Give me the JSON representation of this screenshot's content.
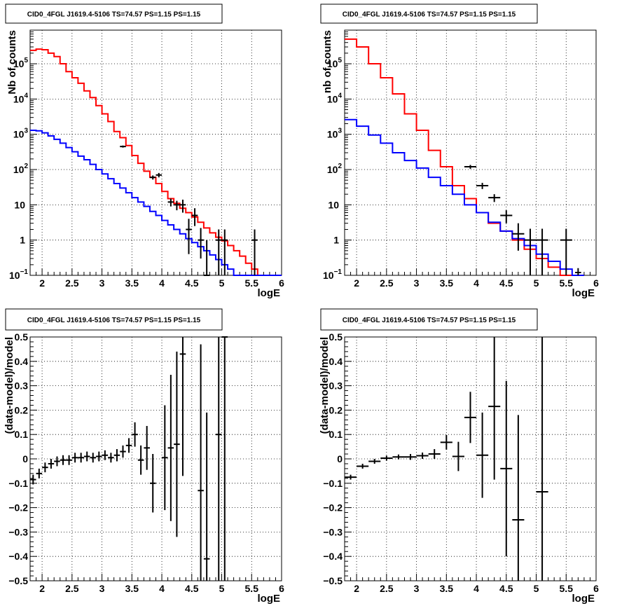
{
  "chart_data": [
    {
      "type": "line",
      "title": "CID0_4FGL J1619.4-5106 TS=74.57 PS=1.15 PS=1.15",
      "xlabel": "logE",
      "ylabel": "Nb of counts",
      "xlim": [
        1.8,
        6.0
      ],
      "ylim": [
        0.1,
        900000
      ],
      "yscale": "log",
      "grid": true,
      "xticks": [
        {
          "v": 2,
          "label": "2"
        },
        {
          "v": 2.5,
          "label": "2.5"
        },
        {
          "v": 3,
          "label": "3"
        },
        {
          "v": 3.5,
          "label": "3.5"
        },
        {
          "v": 4,
          "label": "4"
        },
        {
          "v": 4.5,
          "label": "4.5"
        },
        {
          "v": 5,
          "label": "5"
        },
        {
          "v": 5.5,
          "label": "5.5"
        },
        {
          "v": 6,
          "label": "6"
        }
      ],
      "yticks": [
        {
          "v": 0.1,
          "label": "10",
          "sup": "−1"
        },
        {
          "v": 1,
          "label": "1"
        },
        {
          "v": 10,
          "label": "10"
        },
        {
          "v": 100,
          "label": "10",
          "sup": "2"
        },
        {
          "v": 1000,
          "label": "10",
          "sup": "3"
        },
        {
          "v": 10000,
          "label": "10",
          "sup": "4"
        },
        {
          "v": 100000,
          "label": "10",
          "sup": "5"
        }
      ],
      "bins": [
        1.8,
        1.9,
        2.0,
        2.1,
        2.2,
        2.3,
        2.4,
        2.5,
        2.6,
        2.7,
        2.8,
        2.9,
        3.0,
        3.1,
        3.2,
        3.3,
        3.4,
        3.5,
        3.6,
        3.7,
        3.8,
        3.9,
        4.0,
        4.1,
        4.2,
        4.3,
        4.4,
        4.5,
        4.6,
        4.7,
        4.8,
        4.9,
        5.0,
        5.1,
        5.2,
        5.3,
        5.4,
        5.5,
        5.6,
        5.7,
        5.8,
        5.9,
        6.0
      ],
      "series": [
        {
          "color": "#ff0000",
          "kind": "histogram",
          "values": [
            240000,
            260000,
            250000,
            200000,
            160000,
            100000,
            60000,
            40000,
            28000,
            17000,
            11000,
            6500,
            3800,
            2300,
            1200,
            800,
            480,
            250,
            150,
            90,
            60,
            40,
            24,
            15,
            11,
            8,
            6,
            4.5,
            3.2,
            2.2,
            1.6,
            1.2,
            0.95,
            0.7,
            0.5,
            0.35,
            0.22,
            0.15,
            0.1,
            0.1,
            0.1,
            0.1
          ]
        },
        {
          "color": "#0000ff",
          "kind": "histogram",
          "values": [
            1300,
            1250,
            1100,
            900,
            720,
            560,
            420,
            320,
            240,
            190,
            140,
            100,
            75,
            55,
            40,
            30,
            22,
            16,
            12,
            9,
            6.5,
            5,
            3.6,
            2.7,
            2.0,
            1.5,
            1.1,
            0.85,
            0.65,
            0.5,
            0.38,
            0.28,
            0.2,
            0.15,
            0.1,
            0.1,
            0.1,
            0.1,
            0.1,
            0.1,
            0.1,
            0.1
          ]
        }
      ],
      "points": [
        {
          "x": 3.35,
          "y": 450,
          "ylo": 420,
          "yhi": 480,
          "xerr": 0.05
        },
        {
          "x": 3.85,
          "y": 60,
          "ylo": 52,
          "yhi": 68,
          "xerr": 0.05
        },
        {
          "x": 3.95,
          "y": 70,
          "ylo": 60,
          "yhi": 80,
          "xerr": 0.05
        },
        {
          "x": 4.15,
          "y": 12,
          "ylo": 9,
          "yhi": 15,
          "xerr": 0.05
        },
        {
          "x": 4.25,
          "y": 10,
          "ylo": 7,
          "yhi": 13,
          "xerr": 0.05
        },
        {
          "x": 4.35,
          "y": 10,
          "ylo": 6,
          "yhi": 14,
          "xerr": 0.05
        },
        {
          "x": 4.45,
          "y": 2,
          "ylo": 0.4,
          "yhi": 4,
          "xerr": 0.05
        },
        {
          "x": 4.55,
          "y": 5,
          "ylo": 2.5,
          "yhi": 8,
          "xerr": 0.05
        },
        {
          "x": 4.65,
          "y": 1,
          "ylo": 0.3,
          "yhi": 2.2,
          "xerr": 0.05
        },
        {
          "x": 4.75,
          "y": 0.1,
          "ylo": 0.1,
          "yhi": 1.0,
          "xerr": 0.05
        },
        {
          "x": 4.95,
          "y": 1,
          "ylo": 0.1,
          "yhi": 2.0,
          "xerr": 0.05
        },
        {
          "x": 5.05,
          "y": 1,
          "ylo": 0.1,
          "yhi": 2.0,
          "xerr": 0.05
        },
        {
          "x": 5.55,
          "y": 1,
          "ylo": 0.1,
          "yhi": 2.0,
          "xerr": 0.05
        }
      ]
    },
    {
      "type": "line",
      "title": "CID0_4FGL J1619.4-5106 TS=74.57 PS=1.15 PS=1.15",
      "xlabel": "logE",
      "ylabel": "nb of counts",
      "xlim": [
        1.8,
        6.0
      ],
      "ylim": [
        0.1,
        900000
      ],
      "yscale": "log",
      "grid": true,
      "xticks": [
        {
          "v": 2,
          "label": "2"
        },
        {
          "v": 2.5,
          "label": "2.5"
        },
        {
          "v": 3,
          "label": "3"
        },
        {
          "v": 3.5,
          "label": "3.5"
        },
        {
          "v": 4,
          "label": "4"
        },
        {
          "v": 4.5,
          "label": "4.5"
        },
        {
          "v": 5,
          "label": "5"
        },
        {
          "v": 5.5,
          "label": "5.5"
        },
        {
          "v": 6,
          "label": "6"
        }
      ],
      "yticks": [
        {
          "v": 0.1,
          "label": "10",
          "sup": "−1"
        },
        {
          "v": 1,
          "label": "1"
        },
        {
          "v": 10,
          "label": "10"
        },
        {
          "v": 100,
          "label": "10",
          "sup": "2"
        },
        {
          "v": 1000,
          "label": "10",
          "sup": "3"
        },
        {
          "v": 10000,
          "label": "10",
          "sup": "4"
        },
        {
          "v": 100000,
          "label": "10",
          "sup": "5"
        }
      ],
      "bins": [
        1.8,
        2.0,
        2.2,
        2.4,
        2.6,
        2.8,
        3.0,
        3.2,
        3.4,
        3.6,
        3.8,
        4.0,
        4.2,
        4.4,
        4.6,
        4.8,
        5.0,
        5.2,
        5.4,
        5.6,
        5.8,
        6.0
      ],
      "series": [
        {
          "color": "#ff0000",
          "kind": "histogram",
          "values": [
            500000,
            300000,
            100000,
            40000,
            14000,
            3800,
            1300,
            350,
            120,
            35,
            15,
            6,
            3,
            1.8,
            1.0,
            0.55,
            0.3,
            0.17,
            0.1,
            0.1
          ]
        },
        {
          "color": "#0000ff",
          "kind": "histogram",
          "values": [
            2600,
            1700,
            950,
            560,
            300,
            180,
            110,
            60,
            35,
            20,
            10,
            6,
            3.2,
            1.8,
            1.1,
            0.7,
            0.4,
            0.25,
            0.15,
            0.1
          ]
        }
      ],
      "points": [
        {
          "x": 3.9,
          "y": 120,
          "ylo": 105,
          "yhi": 135,
          "xerr": 0.1
        },
        {
          "x": 4.1,
          "y": 35,
          "ylo": 28,
          "yhi": 42,
          "xerr": 0.1
        },
        {
          "x": 4.3,
          "y": 16,
          "ylo": 12,
          "yhi": 20,
          "xerr": 0.1
        },
        {
          "x": 4.5,
          "y": 5,
          "ylo": 3,
          "yhi": 7,
          "xerr": 0.1
        },
        {
          "x": 4.7,
          "y": 1.5,
          "ylo": 0.5,
          "yhi": 3,
          "xerr": 0.1
        },
        {
          "x": 4.9,
          "y": 1,
          "ylo": 0.1,
          "yhi": 2.1,
          "xerr": 0.1
        },
        {
          "x": 5.1,
          "y": 1,
          "ylo": 0.1,
          "yhi": 2.1,
          "xerr": 0.1
        },
        {
          "x": 5.5,
          "y": 1,
          "ylo": 0.1,
          "yhi": 2.1,
          "xerr": 0.1
        },
        {
          "x": 5.7,
          "y": 0.12,
          "ylo": 0.1,
          "yhi": 0.16,
          "xerr": 0.05
        }
      ]
    },
    {
      "type": "scatter",
      "title": "CID0_4FGL J1619.4-5106 TS=74.57 PS=1.15 PS=1.15",
      "xlabel": "logE",
      "ylabel": "(data-model)/model",
      "xlim": [
        1.8,
        6.0
      ],
      "ylim": [
        -0.5,
        0.5
      ],
      "yscale": "linear",
      "grid": true,
      "xticks": [
        {
          "v": 2,
          "label": "2"
        },
        {
          "v": 2.5,
          "label": "2.5"
        },
        {
          "v": 3,
          "label": "3"
        },
        {
          "v": 3.5,
          "label": "3.5"
        },
        {
          "v": 4,
          "label": "4"
        },
        {
          "v": 4.5,
          "label": "4.5"
        },
        {
          "v": 5,
          "label": "5"
        },
        {
          "v": 5.5,
          "label": "5.5"
        },
        {
          "v": 6,
          "label": "6"
        }
      ],
      "yticks": [
        {
          "v": -0.5,
          "label": "−0.5"
        },
        {
          "v": -0.4,
          "label": "−0.4"
        },
        {
          "v": -0.3,
          "label": "−0.3"
        },
        {
          "v": -0.2,
          "label": "−0.2"
        },
        {
          "v": -0.1,
          "label": "−0.1"
        },
        {
          "v": 0,
          "label": "0"
        },
        {
          "v": 0.1,
          "label": "0.1"
        },
        {
          "v": 0.2,
          "label": "0.2"
        },
        {
          "v": 0.3,
          "label": "0.3"
        },
        {
          "v": 0.4,
          "label": "0.4"
        },
        {
          "v": 0.5,
          "label": "0.5"
        }
      ],
      "points": [
        {
          "x": 1.85,
          "y": -0.085,
          "yerr": 0.02,
          "xerr": 0.05
        },
        {
          "x": 1.95,
          "y": -0.06,
          "yerr": 0.02,
          "xerr": 0.05
        },
        {
          "x": 2.05,
          "y": -0.035,
          "yerr": 0.02,
          "xerr": 0.05
        },
        {
          "x": 2.15,
          "y": -0.02,
          "yerr": 0.02,
          "xerr": 0.05
        },
        {
          "x": 2.25,
          "y": -0.01,
          "yerr": 0.02,
          "xerr": 0.05
        },
        {
          "x": 2.35,
          "y": -0.005,
          "yerr": 0.02,
          "xerr": 0.05
        },
        {
          "x": 2.45,
          "y": -0.005,
          "yerr": 0.02,
          "xerr": 0.05
        },
        {
          "x": 2.55,
          "y": 0.005,
          "yerr": 0.02,
          "xerr": 0.05
        },
        {
          "x": 2.65,
          "y": 0.005,
          "yerr": 0.02,
          "xerr": 0.05
        },
        {
          "x": 2.75,
          "y": 0.01,
          "yerr": 0.02,
          "xerr": 0.05
        },
        {
          "x": 2.85,
          "y": 0.005,
          "yerr": 0.02,
          "xerr": 0.05
        },
        {
          "x": 2.95,
          "y": 0.01,
          "yerr": 0.02,
          "xerr": 0.05
        },
        {
          "x": 3.05,
          "y": 0.015,
          "yerr": 0.02,
          "xerr": 0.05
        },
        {
          "x": 3.15,
          "y": 0.005,
          "yerr": 0.02,
          "xerr": 0.05
        },
        {
          "x": 3.25,
          "y": 0.015,
          "yerr": 0.025,
          "xerr": 0.05
        },
        {
          "x": 3.35,
          "y": 0.03,
          "yerr": 0.025,
          "xerr": 0.05
        },
        {
          "x": 3.45,
          "y": 0.055,
          "yerr": 0.03,
          "xerr": 0.05
        },
        {
          "x": 3.55,
          "y": 0.1,
          "yerr": 0.05,
          "xerr": 0.05
        },
        {
          "x": 3.65,
          "y": -0.005,
          "yerr": 0.06,
          "xerr": 0.05
        },
        {
          "x": 3.75,
          "y": 0.045,
          "yerr": 0.09,
          "xerr": 0.05
        },
        {
          "x": 3.85,
          "y": -0.1,
          "yerr": 0.12,
          "xerr": 0.05
        },
        {
          "x": 4.05,
          "y": 0.005,
          "yerr": 0.215,
          "xerr": 0.05
        },
        {
          "x": 4.15,
          "y": 0.045,
          "yerr": 0.3,
          "xerr": 0.05
        },
        {
          "x": 4.25,
          "y": 0.06,
          "yerr": 0.38,
          "xerr": 0.05
        },
        {
          "x": 4.35,
          "y": 0.43,
          "yerr": 0.5,
          "xerr": 0.05
        },
        {
          "x": 4.65,
          "y": -0.13,
          "yerr": 0.6,
          "xerr": 0.05
        },
        {
          "x": 4.75,
          "y": -0.41,
          "yerr": 0.6,
          "xerr": 0.05
        },
        {
          "x": 4.95,
          "y": 0.1,
          "yerr": 0.8,
          "xerr": 0.05
        },
        {
          "x": 5.05,
          "y": 0.5,
          "yerr": 1.0,
          "xerr": 0.05
        }
      ]
    },
    {
      "type": "scatter",
      "title": "CID0_4FGL J1619.4-5106 TS=74.57 PS=1.15 PS=1.15",
      "xlabel": "logE",
      "ylabel": "(data-model)/model",
      "xlim": [
        1.8,
        6.0
      ],
      "ylim": [
        -0.5,
        0.5
      ],
      "yscale": "linear",
      "grid": true,
      "xticks": [
        {
          "v": 2,
          "label": "2"
        },
        {
          "v": 2.5,
          "label": "2.5"
        },
        {
          "v": 3,
          "label": "3"
        },
        {
          "v": 3.5,
          "label": "3.5"
        },
        {
          "v": 4,
          "label": "4"
        },
        {
          "v": 4.5,
          "label": "4.5"
        },
        {
          "v": 5,
          "label": "5"
        },
        {
          "v": 5.5,
          "label": "5.5"
        },
        {
          "v": 6,
          "label": "6"
        }
      ],
      "yticks": [
        {
          "v": -0.5,
          "label": "−0.5"
        },
        {
          "v": -0.4,
          "label": "−0.4"
        },
        {
          "v": -0.3,
          "label": "−0.3"
        },
        {
          "v": -0.2,
          "label": "−0.2"
        },
        {
          "v": -0.1,
          "label": "−0.1"
        },
        {
          "v": 0,
          "label": "0"
        },
        {
          "v": 0.1,
          "label": "0.1"
        },
        {
          "v": 0.2,
          "label": "0.2"
        },
        {
          "v": 0.3,
          "label": "0.3"
        },
        {
          "v": 0.4,
          "label": "0.4"
        },
        {
          "v": 0.5,
          "label": "0.5"
        }
      ],
      "points": [
        {
          "x": 1.9,
          "y": -0.075,
          "yerr": 0.01,
          "xerr": 0.1
        },
        {
          "x": 2.1,
          "y": -0.03,
          "yerr": 0.01,
          "xerr": 0.1
        },
        {
          "x": 2.3,
          "y": -0.01,
          "yerr": 0.01,
          "xerr": 0.1
        },
        {
          "x": 2.5,
          "y": 0.003,
          "yerr": 0.01,
          "xerr": 0.1
        },
        {
          "x": 2.7,
          "y": 0.008,
          "yerr": 0.01,
          "xerr": 0.1
        },
        {
          "x": 2.9,
          "y": 0.008,
          "yerr": 0.012,
          "xerr": 0.1
        },
        {
          "x": 3.1,
          "y": 0.013,
          "yerr": 0.013,
          "xerr": 0.1
        },
        {
          "x": 3.3,
          "y": 0.02,
          "yerr": 0.02,
          "xerr": 0.1
        },
        {
          "x": 3.5,
          "y": 0.068,
          "yerr": 0.03,
          "xerr": 0.1
        },
        {
          "x": 3.7,
          "y": 0.01,
          "yerr": 0.06,
          "xerr": 0.1
        },
        {
          "x": 3.9,
          "y": 0.17,
          "yerr": 0.105,
          "xerr": 0.1
        },
        {
          "x": 4.1,
          "y": 0.015,
          "yerr": 0.175,
          "xerr": 0.1
        },
        {
          "x": 4.3,
          "y": 0.215,
          "yerr": 0.3,
          "xerr": 0.1
        },
        {
          "x": 4.5,
          "y": -0.04,
          "yerr": 0.36,
          "xerr": 0.1
        },
        {
          "x": 4.7,
          "y": -0.25,
          "yerr": 0.43,
          "xerr": 0.1
        },
        {
          "x": 5.1,
          "y": -0.135,
          "yerr": 0.95,
          "xerr": 0.1
        }
      ]
    }
  ]
}
